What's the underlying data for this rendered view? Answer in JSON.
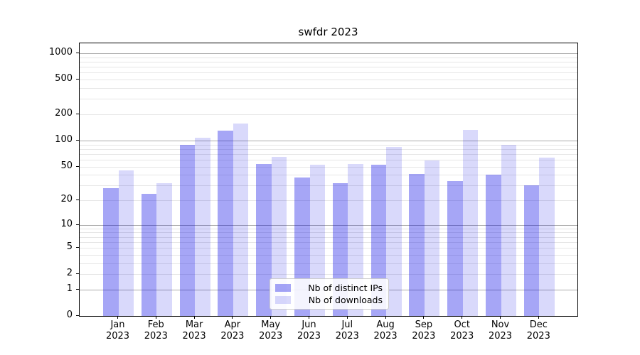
{
  "title": "swfdr 2023",
  "chart_data": {
    "type": "bar",
    "title": "swfdr 2023",
    "categories": [
      "Jan",
      "Feb",
      "Mar",
      "Apr",
      "May",
      "Jun",
      "Jul",
      "Aug",
      "Sep",
      "Oct",
      "Nov",
      "Dec"
    ],
    "year_label": "2023",
    "series": [
      {
        "name": "Nb of distinct IPs",
        "color": "rgba(0,0,230,0.35)",
        "values": [
          28,
          24,
          89,
          130,
          53,
          37,
          32,
          52,
          41,
          34,
          40,
          30
        ]
      },
      {
        "name": "Nb of downloads",
        "color": "rgba(0,0,230,0.15)",
        "values": [
          45,
          32,
          107,
          156,
          65,
          52,
          53,
          84,
          59,
          132,
          89,
          63
        ]
      }
    ],
    "xlabel": "",
    "ylabel": "",
    "yscale": "log1p",
    "ylim": [
      0,
      1300
    ],
    "y_ticks": [
      0,
      1,
      2,
      5,
      10,
      20,
      50,
      100,
      200,
      500,
      1000
    ],
    "major_gridlines": [
      1,
      10,
      100,
      1000
    ],
    "minor_gridlines": [
      2,
      3,
      4,
      5,
      6,
      7,
      8,
      9,
      20,
      30,
      40,
      50,
      60,
      70,
      80,
      90,
      200,
      300,
      400,
      500,
      600,
      700,
      800,
      900
    ],
    "grid": "on",
    "legend": {
      "position": "lower-center",
      "entries": [
        "Nb of distinct IPs",
        "Nb of downloads"
      ]
    }
  }
}
